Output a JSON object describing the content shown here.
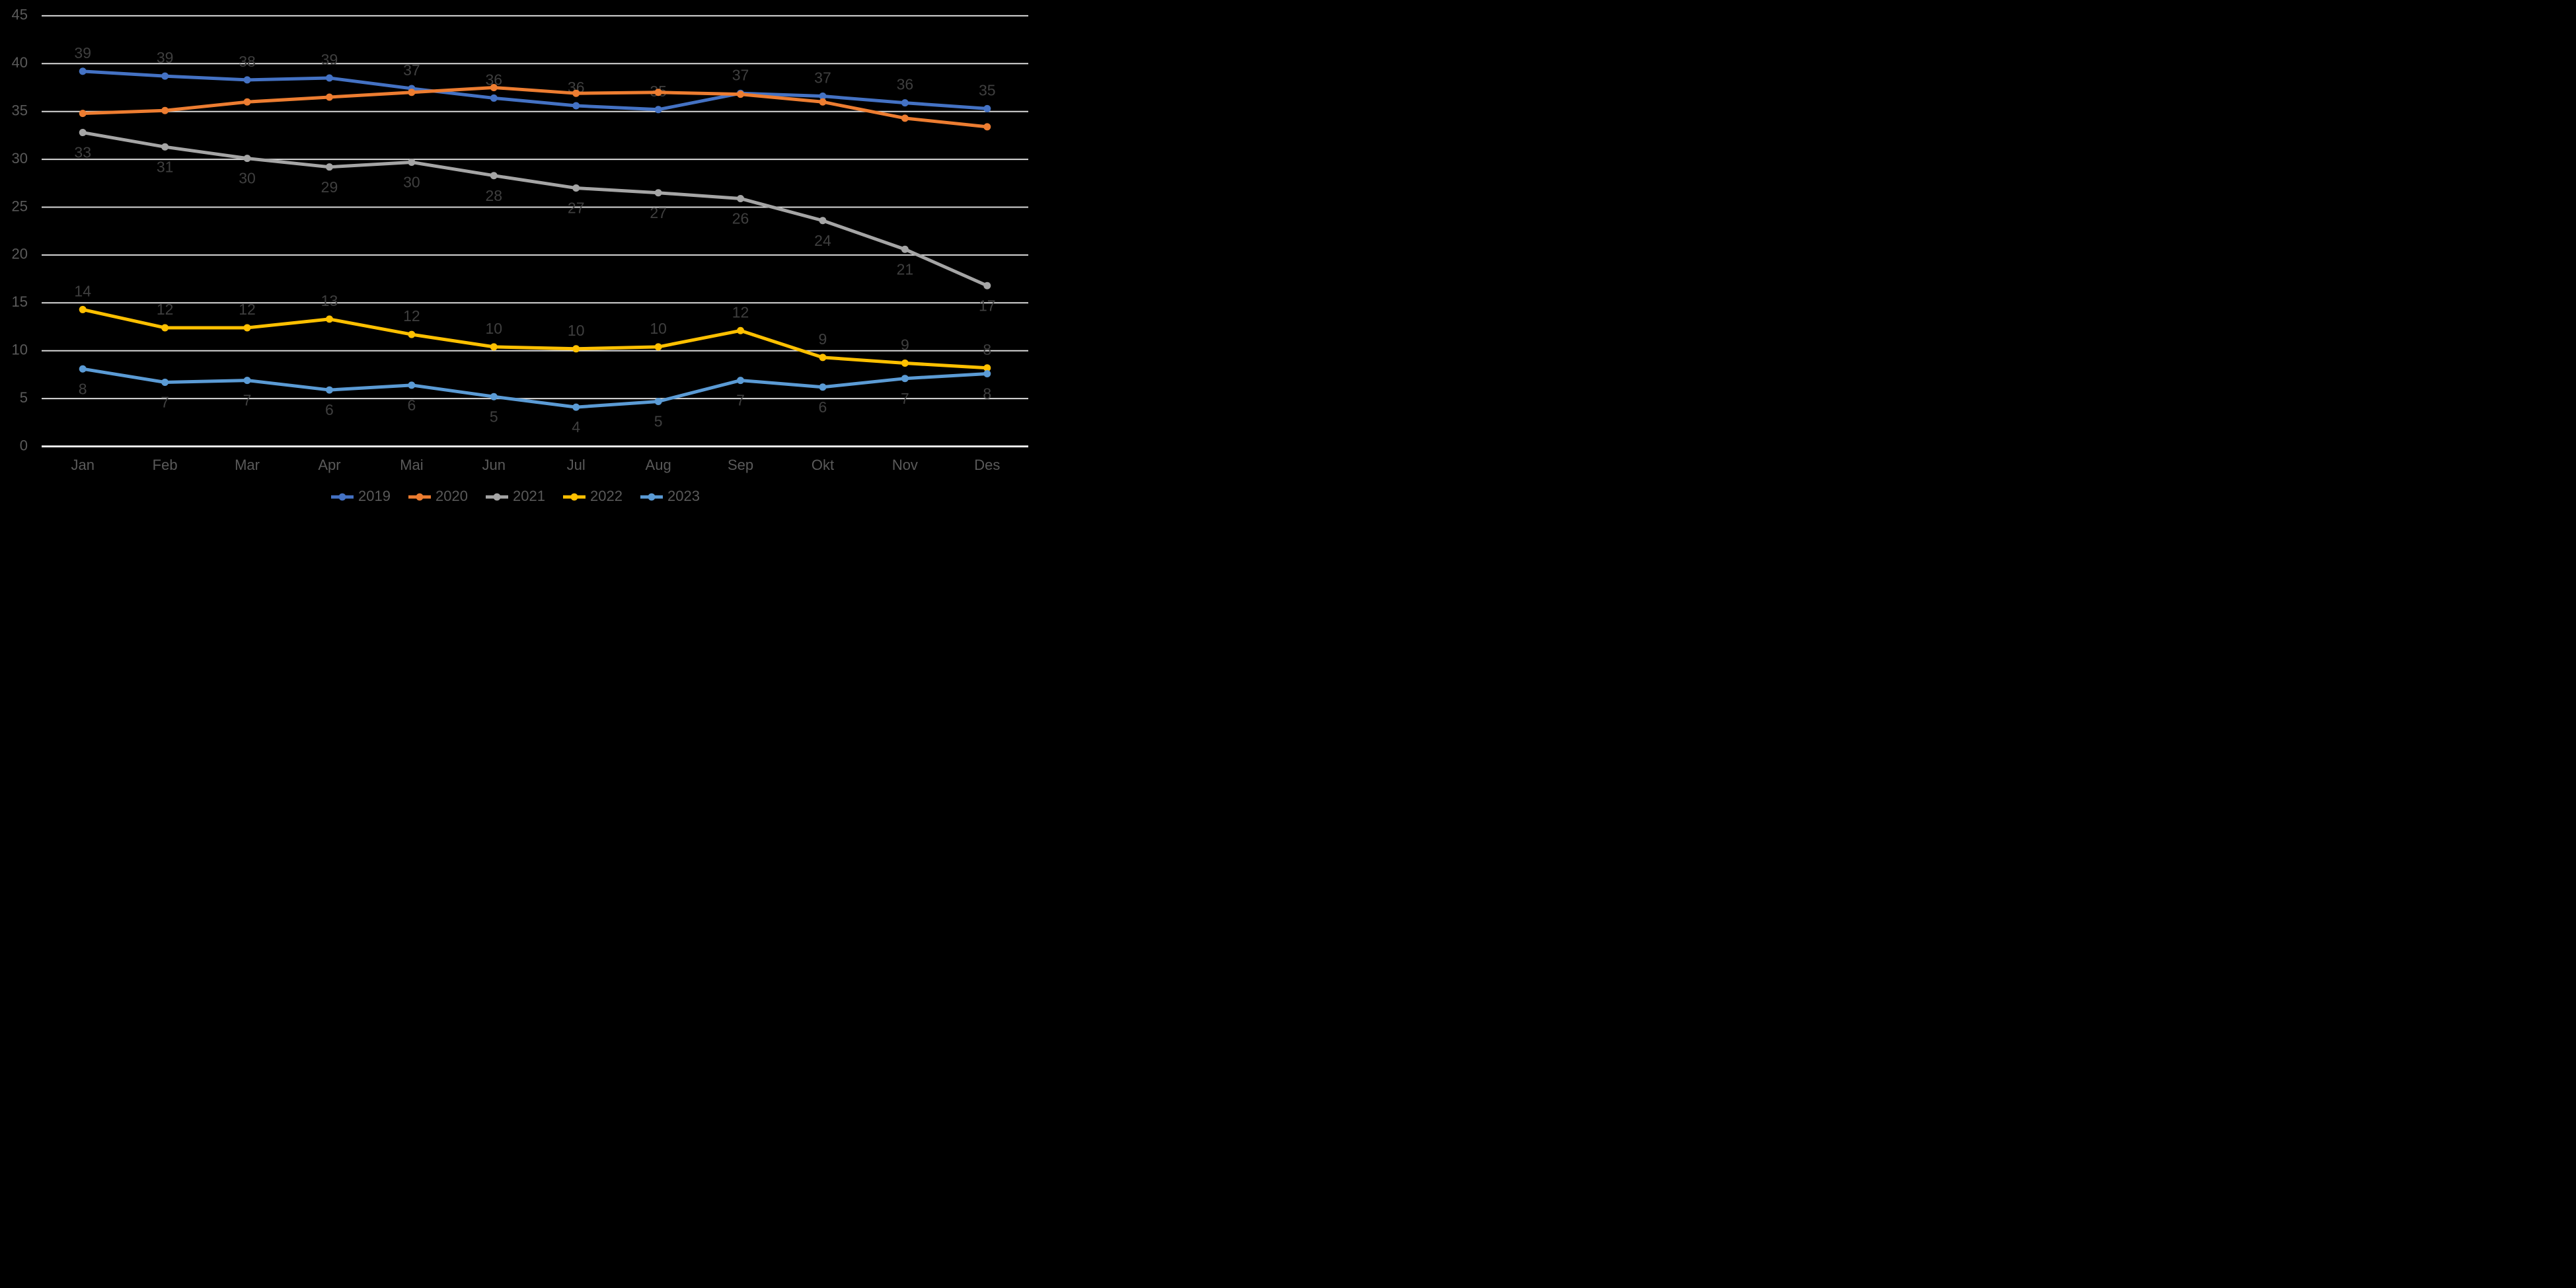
{
  "chart_data": {
    "type": "line",
    "title": "",
    "categories": [
      "Jan",
      "Feb",
      "Mar",
      "Apr",
      "Mai",
      "Jun",
      "Jul",
      "Aug",
      "Sep",
      "Okt",
      "Nov",
      "Des"
    ],
    "series": [
      {
        "name": "2019",
        "color": "#4472C4",
        "label_position": "above",
        "values": [
          39.2,
          38.7,
          38.3,
          38.5,
          37.4,
          36.4,
          35.6,
          35.2,
          36.9,
          36.6,
          35.9,
          35.3
        ],
        "point_labels": [
          "39",
          "39",
          "38",
          "39",
          "37",
          "36",
          "36",
          "35",
          "37",
          "37",
          "36",
          "35"
        ]
      },
      {
        "name": "2020",
        "color": "#ED7D31",
        "label_position": "none",
        "values": [
          34.8,
          35.1,
          36.0,
          36.5,
          37.0,
          37.5,
          36.9,
          37.0,
          36.8,
          36.0,
          34.3,
          33.4
        ],
        "point_labels": null
      },
      {
        "name": "2021",
        "color": "#A5A5A5",
        "label_position": "below",
        "values": [
          32.8,
          31.3,
          30.1,
          29.2,
          29.7,
          28.3,
          27.0,
          26.5,
          25.9,
          23.6,
          20.6,
          16.8
        ],
        "point_labels": [
          "33",
          "31",
          "30",
          "29",
          "30",
          "28",
          "27",
          "27",
          "26",
          "24",
          "21",
          "17"
        ]
      },
      {
        "name": "2022",
        "color": "#FFC000",
        "label_position": "above",
        "values": [
          14.3,
          12.4,
          12.4,
          13.3,
          11.7,
          10.4,
          10.2,
          10.4,
          12.1,
          9.3,
          8.7,
          8.2
        ],
        "point_labels": [
          "14",
          "12",
          "12",
          "13",
          "12",
          "10",
          "10",
          "10",
          "12",
          "9",
          "9",
          "8"
        ]
      },
      {
        "name": "2023",
        "color": "#5B9BD5",
        "label_position": "below",
        "values": [
          8.1,
          6.7,
          6.9,
          5.9,
          6.4,
          5.2,
          4.1,
          4.7,
          6.9,
          6.2,
          7.1,
          7.6
        ],
        "point_labels": [
          "8",
          "7",
          "7",
          "6",
          "6",
          "5",
          "4",
          "5",
          "7",
          "6",
          "7",
          "8"
        ]
      }
    ],
    "y_axis": {
      "min": 0,
      "max": 45,
      "step": 5,
      "tick_labels": [
        "0",
        "5",
        "10",
        "15",
        "20",
        "25",
        "30",
        "35",
        "40",
        "45"
      ]
    },
    "x_axis": {
      "tick_labels": [
        "Jan",
        "Feb",
        "Mar",
        "Apr",
        "Mai",
        "Jun",
        "Jul",
        "Aug",
        "Sep",
        "Okt",
        "Nov",
        "Des"
      ]
    },
    "grid": true,
    "legend_position": "bottom",
    "legend_entries": [
      "2019",
      "2020",
      "2021",
      "2022",
      "2023"
    ],
    "colors": {
      "background": "#000000",
      "gridline": "#D9D9D9",
      "axis_line": "#E8E8E8",
      "axis_text": "#5A5A5A",
      "data_label_text": "#3F3F3F",
      "legend_text": "#595959"
    }
  }
}
